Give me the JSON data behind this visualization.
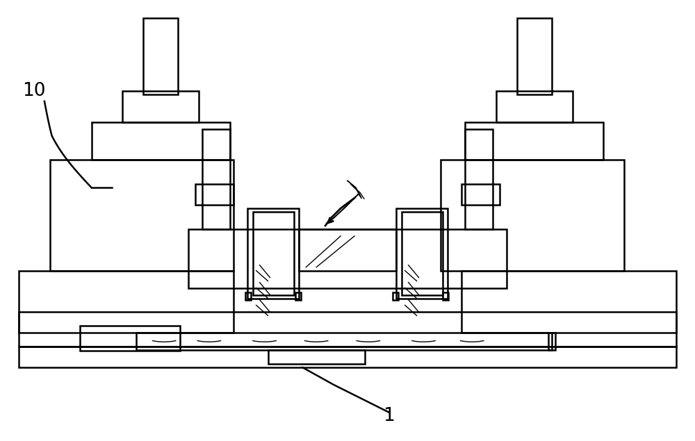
{
  "bg_color": "#ffffff",
  "line_color": "#000000",
  "lw": 1.8,
  "lw_thin": 1.0,
  "fig_width": 10.0,
  "fig_height": 6.35,
  "label_10": "10",
  "label_1": "1"
}
